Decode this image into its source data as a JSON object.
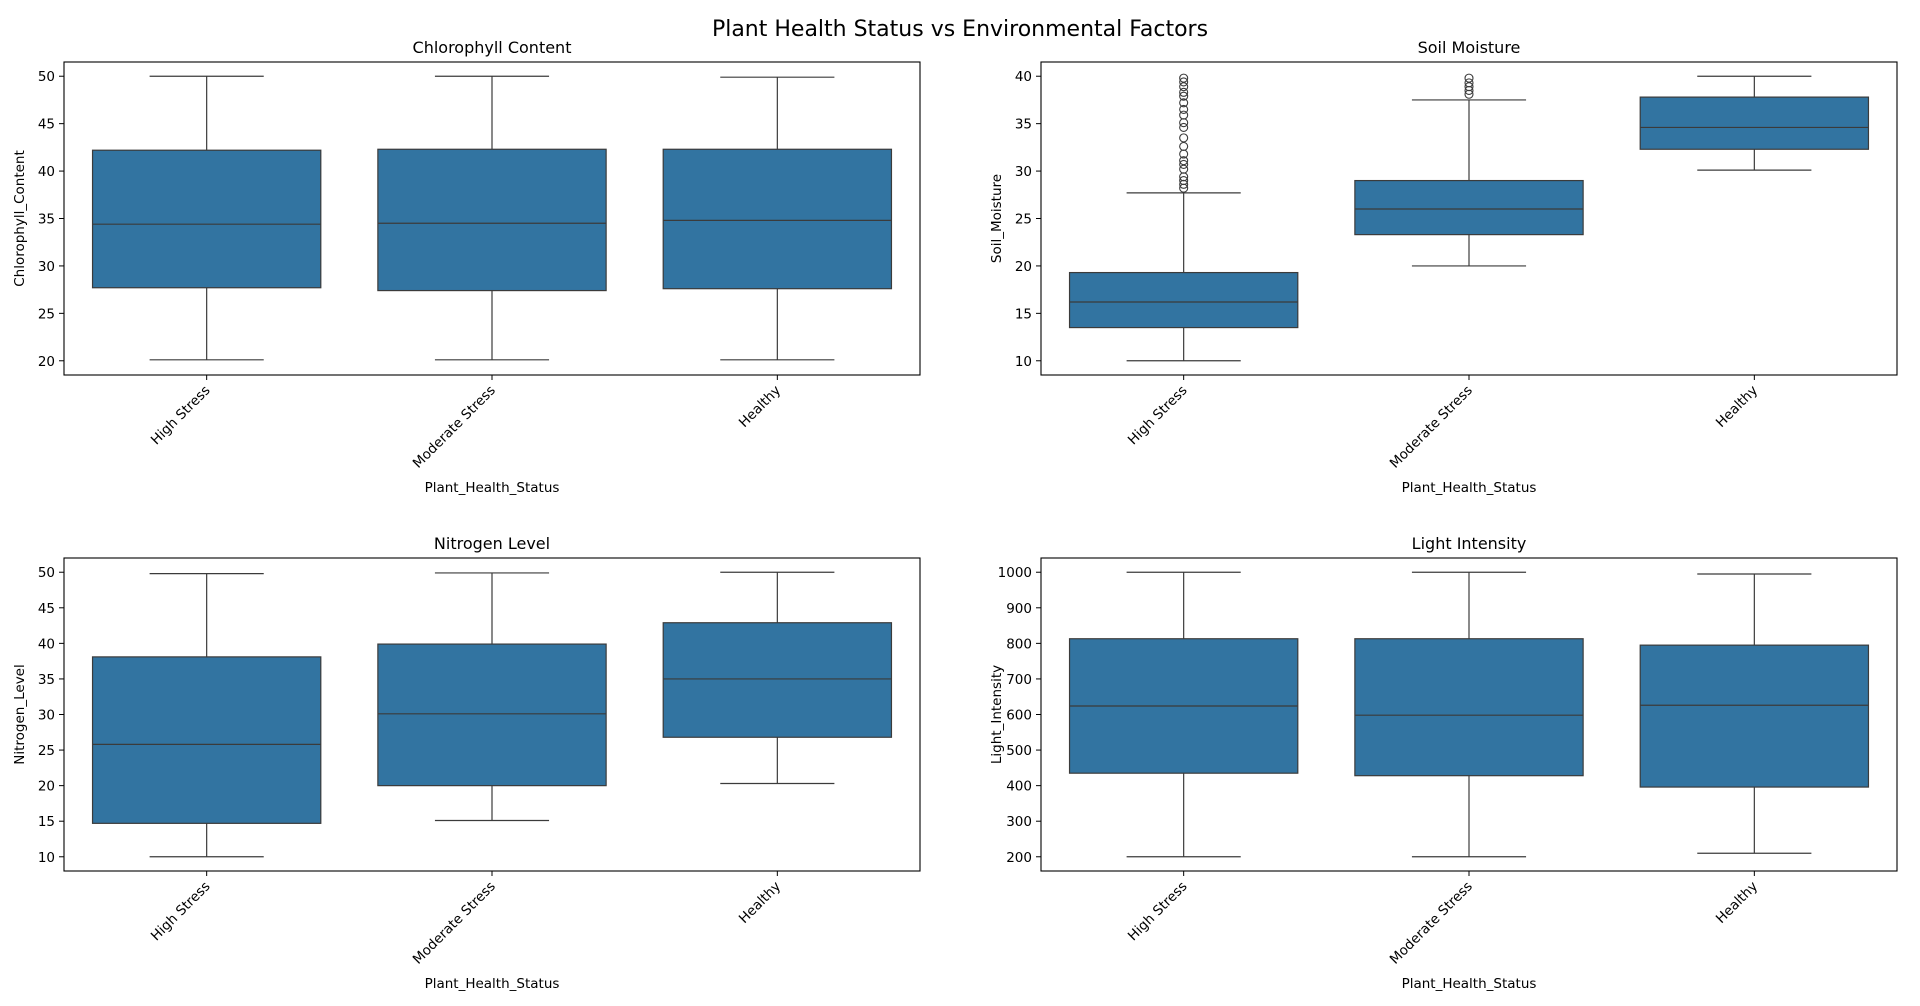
{
  "suptitle": "Plant Health Status vs Environmental Factors",
  "colors": {
    "box": "#3274a1",
    "line": "#3b3b3b",
    "axis": "#000000"
  },
  "chart_data": [
    {
      "type": "box",
      "title": "Chlorophyll Content",
      "xlabel": "Plant_Health_Status",
      "ylabel": "Chlorophyll_Content",
      "categories": [
        "High Stress",
        "Moderate Stress",
        "Healthy"
      ],
      "ylim": [
        18.5,
        51.5
      ],
      "yticks": [
        20,
        25,
        30,
        35,
        40,
        45,
        50
      ],
      "boxes": [
        {
          "whislo": 20.1,
          "q1": 27.7,
          "med": 34.4,
          "q3": 42.2,
          "whishi": 50.0,
          "fliers": []
        },
        {
          "whislo": 20.1,
          "q1": 27.4,
          "med": 34.5,
          "q3": 42.3,
          "whishi": 50.0,
          "fliers": []
        },
        {
          "whislo": 20.1,
          "q1": 27.6,
          "med": 34.8,
          "q3": 42.3,
          "whishi": 49.9,
          "fliers": []
        }
      ]
    },
    {
      "type": "box",
      "title": "Soil Moisture",
      "xlabel": "Plant_Health_Status",
      "ylabel": "Soil_Moisture",
      "categories": [
        "High Stress",
        "Moderate Stress",
        "Healthy"
      ],
      "ylim": [
        8.5,
        41.5
      ],
      "yticks": [
        10,
        15,
        20,
        25,
        30,
        35,
        40
      ],
      "boxes": [
        {
          "whislo": 10.0,
          "q1": 13.5,
          "med": 16.2,
          "q3": 19.3,
          "whishi": 27.7,
          "fliers": [
            28.2,
            28.6,
            29.0,
            29.4,
            30.2,
            30.7,
            31.1,
            31.8,
            32.6,
            33.5,
            34.6,
            35.1,
            35.9,
            36.5,
            37.2,
            37.9,
            38.3,
            38.9,
            39.4,
            39.8
          ]
        },
        {
          "whislo": 20.0,
          "q1": 23.3,
          "med": 26.0,
          "q3": 29.0,
          "whishi": 37.5,
          "fliers": [
            38.1,
            38.5,
            38.9,
            39.3,
            39.8
          ]
        },
        {
          "whislo": 30.1,
          "q1": 32.3,
          "med": 34.6,
          "q3": 37.8,
          "whishi": 40.0,
          "fliers": []
        }
      ]
    },
    {
      "type": "box",
      "title": "Nitrogen Level",
      "xlabel": "Plant_Health_Status",
      "ylabel": "Nitrogen_Level",
      "categories": [
        "High Stress",
        "Moderate Stress",
        "Healthy"
      ],
      "ylim": [
        8.0,
        52.0
      ],
      "yticks": [
        10,
        15,
        20,
        25,
        30,
        35,
        40,
        45,
        50
      ],
      "boxes": [
        {
          "whislo": 10.0,
          "q1": 14.7,
          "med": 25.8,
          "q3": 38.1,
          "whishi": 49.8,
          "fliers": []
        },
        {
          "whislo": 15.1,
          "q1": 20.0,
          "med": 30.1,
          "q3": 39.9,
          "whishi": 49.9,
          "fliers": []
        },
        {
          "whislo": 20.3,
          "q1": 26.8,
          "med": 35.0,
          "q3": 42.9,
          "whishi": 50.0,
          "fliers": []
        }
      ]
    },
    {
      "type": "box",
      "title": "Light Intensity",
      "xlabel": "Plant_Health_Status",
      "ylabel": "Light_Intensity",
      "categories": [
        "High Stress",
        "Moderate Stress",
        "Healthy"
      ],
      "ylim": [
        160,
        1040
      ],
      "yticks": [
        200,
        300,
        400,
        500,
        600,
        700,
        800,
        900,
        1000
      ],
      "boxes": [
        {
          "whislo": 200,
          "q1": 435,
          "med": 624,
          "q3": 813,
          "whishi": 1000,
          "fliers": []
        },
        {
          "whislo": 200,
          "q1": 428,
          "med": 598,
          "q3": 813,
          "whishi": 1000,
          "fliers": []
        },
        {
          "whislo": 210,
          "q1": 396,
          "med": 626,
          "q3": 795,
          "whishi": 995,
          "fliers": []
        }
      ]
    }
  ]
}
